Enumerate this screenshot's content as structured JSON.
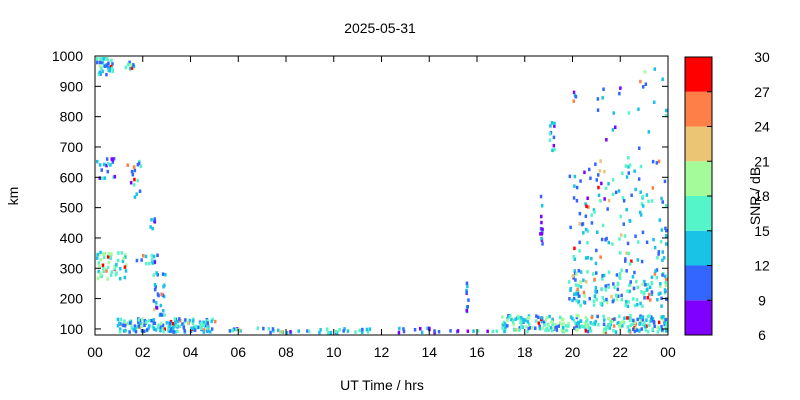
{
  "chart_data": {
    "type": "scatter",
    "title": "2025-05-31",
    "xlabel": "UT Time / hrs",
    "ylabel": "km",
    "xlim": [
      0,
      24
    ],
    "ylim": [
      80,
      1000
    ],
    "x_ticks": [
      "00",
      "02",
      "04",
      "06",
      "08",
      "10",
      "12",
      "14",
      "16",
      "18",
      "20",
      "22",
      "00"
    ],
    "y_ticks": [
      100,
      200,
      300,
      400,
      500,
      600,
      700,
      800,
      900,
      1000
    ],
    "colorbar": {
      "label": "SNR / dB",
      "ticks": [
        6,
        9,
        12,
        15,
        18,
        21,
        24,
        27,
        30
      ],
      "colors": [
        "#7f00ff",
        "#3366ff",
        "#18c3e6",
        "#54f5c8",
        "#a4fb9a",
        "#ebc573",
        "#ff7f48",
        "#ff0000"
      ]
    },
    "grid": false,
    "clusters": [
      {
        "x": [
          0.0,
          0.7
        ],
        "y": [
          940,
          1000
        ],
        "n": 40,
        "snr": 14
      },
      {
        "x": [
          1.2,
          1.6
        ],
        "y": [
          960,
          990
        ],
        "n": 10,
        "snr": 14
      },
      {
        "x": [
          0.0,
          0.8
        ],
        "y": [
          600,
          670
        ],
        "n": 18,
        "snr": 12
      },
      {
        "x": [
          1.3,
          1.9
        ],
        "y": [
          540,
          660
        ],
        "n": 16,
        "snr": 13
      },
      {
        "x": [
          0.0,
          1.3
        ],
        "y": [
          270,
          360
        ],
        "n": 50,
        "snr": 17
      },
      {
        "x": [
          1.7,
          2.6
        ],
        "y": [
          320,
          350
        ],
        "n": 14,
        "snr": 13
      },
      {
        "x": [
          2.4,
          2.9
        ],
        "y": [
          150,
          300
        ],
        "n": 26,
        "snr": 11
      },
      {
        "x": [
          2.1,
          2.6
        ],
        "y": [
          430,
          470
        ],
        "n": 6,
        "snr": 10
      },
      {
        "x": [
          0.9,
          5.0
        ],
        "y": [
          95,
          140
        ],
        "n": 160,
        "snr": 14
      },
      {
        "x": [
          5.0,
          11.5
        ],
        "y": [
          92,
          108
        ],
        "n": 45,
        "snr": 13
      },
      {
        "x": [
          12.0,
          17.0
        ],
        "y": [
          92,
          110
        ],
        "n": 22,
        "snr": 11
      },
      {
        "x": [
          15.5,
          15.6
        ],
        "y": [
          150,
          260
        ],
        "n": 10,
        "snr": 10
      },
      {
        "x": [
          17.0,
          24.0
        ],
        "y": [
          95,
          150
        ],
        "n": 260,
        "snr": 15
      },
      {
        "x": [
          18.6,
          18.7
        ],
        "y": [
          370,
          550
        ],
        "n": 14,
        "snr": 10
      },
      {
        "x": [
          19.0,
          19.2
        ],
        "y": [
          680,
          790
        ],
        "n": 12,
        "snr": 11
      },
      {
        "x": [
          19.9,
          20.1
        ],
        "y": [
          850,
          890
        ],
        "n": 4,
        "snr": 10
      },
      {
        "x": [
          19.8,
          24.0
        ],
        "y": [
          180,
          300
        ],
        "n": 150,
        "snr": 14
      },
      {
        "x": [
          19.8,
          24.0
        ],
        "y": [
          320,
          650
        ],
        "n": 130,
        "snr": 13
      },
      {
        "x": [
          21.0,
          24.0
        ],
        "y": [
          650,
          980
        ],
        "n": 28,
        "snr": 12
      }
    ]
  }
}
